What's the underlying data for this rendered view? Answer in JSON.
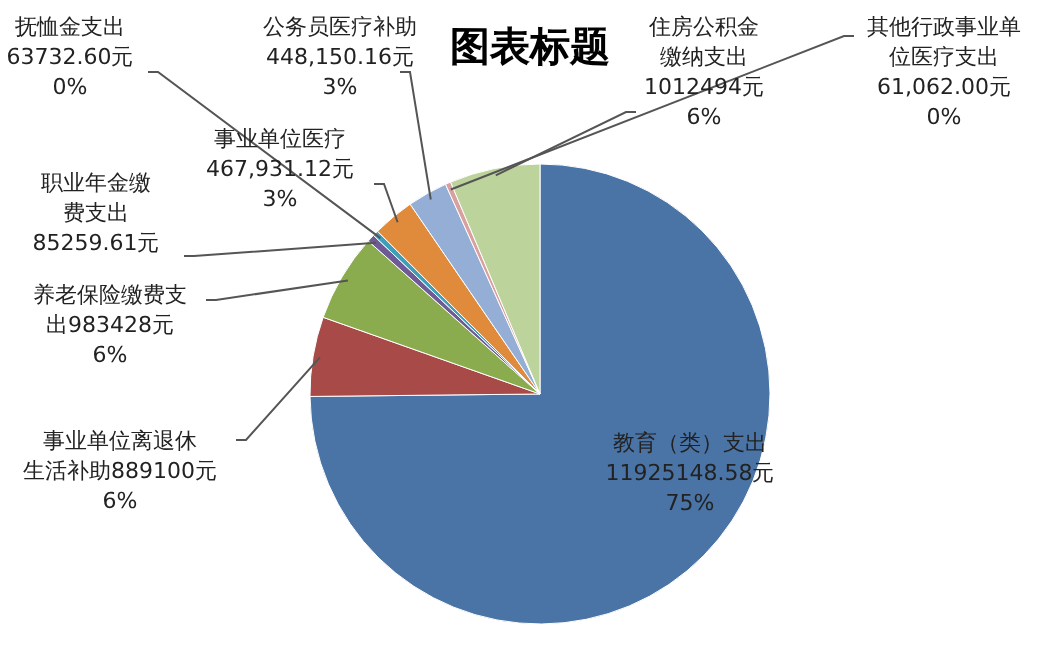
{
  "chart_data": {
    "type": "pie",
    "title": "图表标题",
    "categories": [
      "教育（类）支出",
      "事业单位离退休生活补助",
      "养老保险缴费支出",
      "职业年金缴费支出",
      "抚恤金支出",
      "事业单位医疗",
      "公务员医疗补助",
      "其他行政事业单位医疗支出",
      "住房公积金缴纳支出"
    ],
    "values": [
      11925148.58,
      889100,
      983428,
      85259.61,
      63732.6,
      467931.12,
      448150.16,
      61062,
      1012494
    ],
    "value_labels": [
      "11925148.58元\n75%",
      "889100元\n6%",
      "983428元\n6%",
      "85259.61元",
      "63732.60元\n0%",
      "467,931.12元\n3%",
      "448,150.16元\n3%",
      "61,062.00元\n0%",
      "1012494元\n6%"
    ],
    "colors": [
      "#4a74a6",
      "#a84a48",
      "#8aab4e",
      "#6e5a95",
      "#3ca0bb",
      "#e08a3c",
      "#94aed5",
      "#d9a0a0",
      "#bcd39b"
    ]
  }
}
